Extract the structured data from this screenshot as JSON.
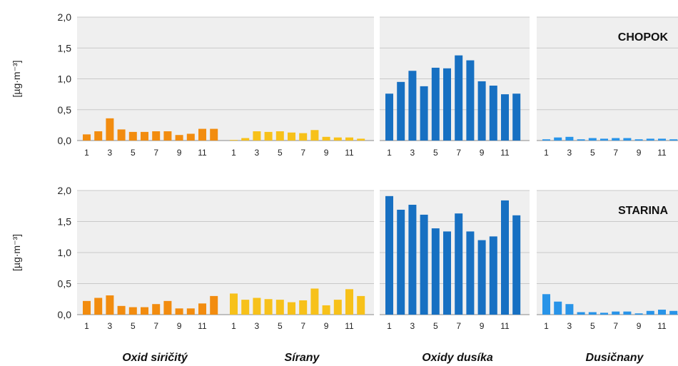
{
  "chart_data": {
    "type": "bar",
    "ylabel": "[µg·m⁻³]",
    "ylim": [
      0,
      2.0
    ],
    "y_ticks": [
      "0,0",
      "0,5",
      "1,0",
      "1,5",
      "2,0"
    ],
    "categories": [
      1,
      2,
      3,
      4,
      5,
      6,
      7,
      8,
      9,
      10,
      11,
      12
    ],
    "x_tick_labels": [
      "1",
      "3",
      "5",
      "7",
      "9",
      "11"
    ],
    "grid": true,
    "pollutants": [
      {
        "name": "Oxid siričitý",
        "color": "#f28c0f"
      },
      {
        "name": "Sírany",
        "color": "#f7c11a"
      },
      {
        "name": "Oxidy dusíka",
        "color": "#1770c2"
      },
      {
        "name": "Dusičnany",
        "color": "#2994e8"
      }
    ],
    "stations": [
      {
        "name": "CHOPOK",
        "series": [
          {
            "pollutant": "Oxid siričitý",
            "values": [
              0.1,
              0.15,
              0.36,
              0.18,
              0.14,
              0.14,
              0.15,
              0.15,
              0.09,
              0.11,
              0.19,
              0.19
            ]
          },
          {
            "pollutant": "Sírany",
            "values": [
              0.01,
              0.04,
              0.15,
              0.14,
              0.15,
              0.13,
              0.12,
              0.17,
              0.06,
              0.05,
              0.05,
              0.03
            ]
          },
          {
            "pollutant": "Oxidy dusíka",
            "values": [
              0.76,
              0.95,
              1.13,
              0.88,
              1.18,
              1.17,
              1.38,
              1.3,
              0.96,
              0.89,
              0.75,
              0.76
            ]
          },
          {
            "pollutant": "Dusičnany",
            "values": [
              0.02,
              0.05,
              0.06,
              0.02,
              0.04,
              0.03,
              0.04,
              0.04,
              0.02,
              0.03,
              0.03,
              0.02
            ]
          }
        ]
      },
      {
        "name": "STARINA",
        "series": [
          {
            "pollutant": "Oxid siričitý",
            "values": [
              0.22,
              0.27,
              0.31,
              0.14,
              0.12,
              0.12,
              0.17,
              0.22,
              0.1,
              0.1,
              0.18,
              0.3
            ]
          },
          {
            "pollutant": "Sírany",
            "values": [
              0.34,
              0.24,
              0.27,
              0.25,
              0.24,
              0.2,
              0.23,
              0.42,
              0.15,
              0.24,
              0.41,
              0.3
            ]
          },
          {
            "pollutant": "Oxidy dusíka",
            "values": [
              1.91,
              1.69,
              1.77,
              1.61,
              1.39,
              1.34,
              1.63,
              1.34,
              1.2,
              1.26,
              1.84,
              1.6
            ]
          },
          {
            "pollutant": "Dusičnany",
            "values": [
              0.33,
              0.21,
              0.17,
              0.04,
              0.04,
              0.03,
              0.05,
              0.05,
              0.02,
              0.06,
              0.08,
              0.06
            ]
          }
        ]
      }
    ]
  }
}
